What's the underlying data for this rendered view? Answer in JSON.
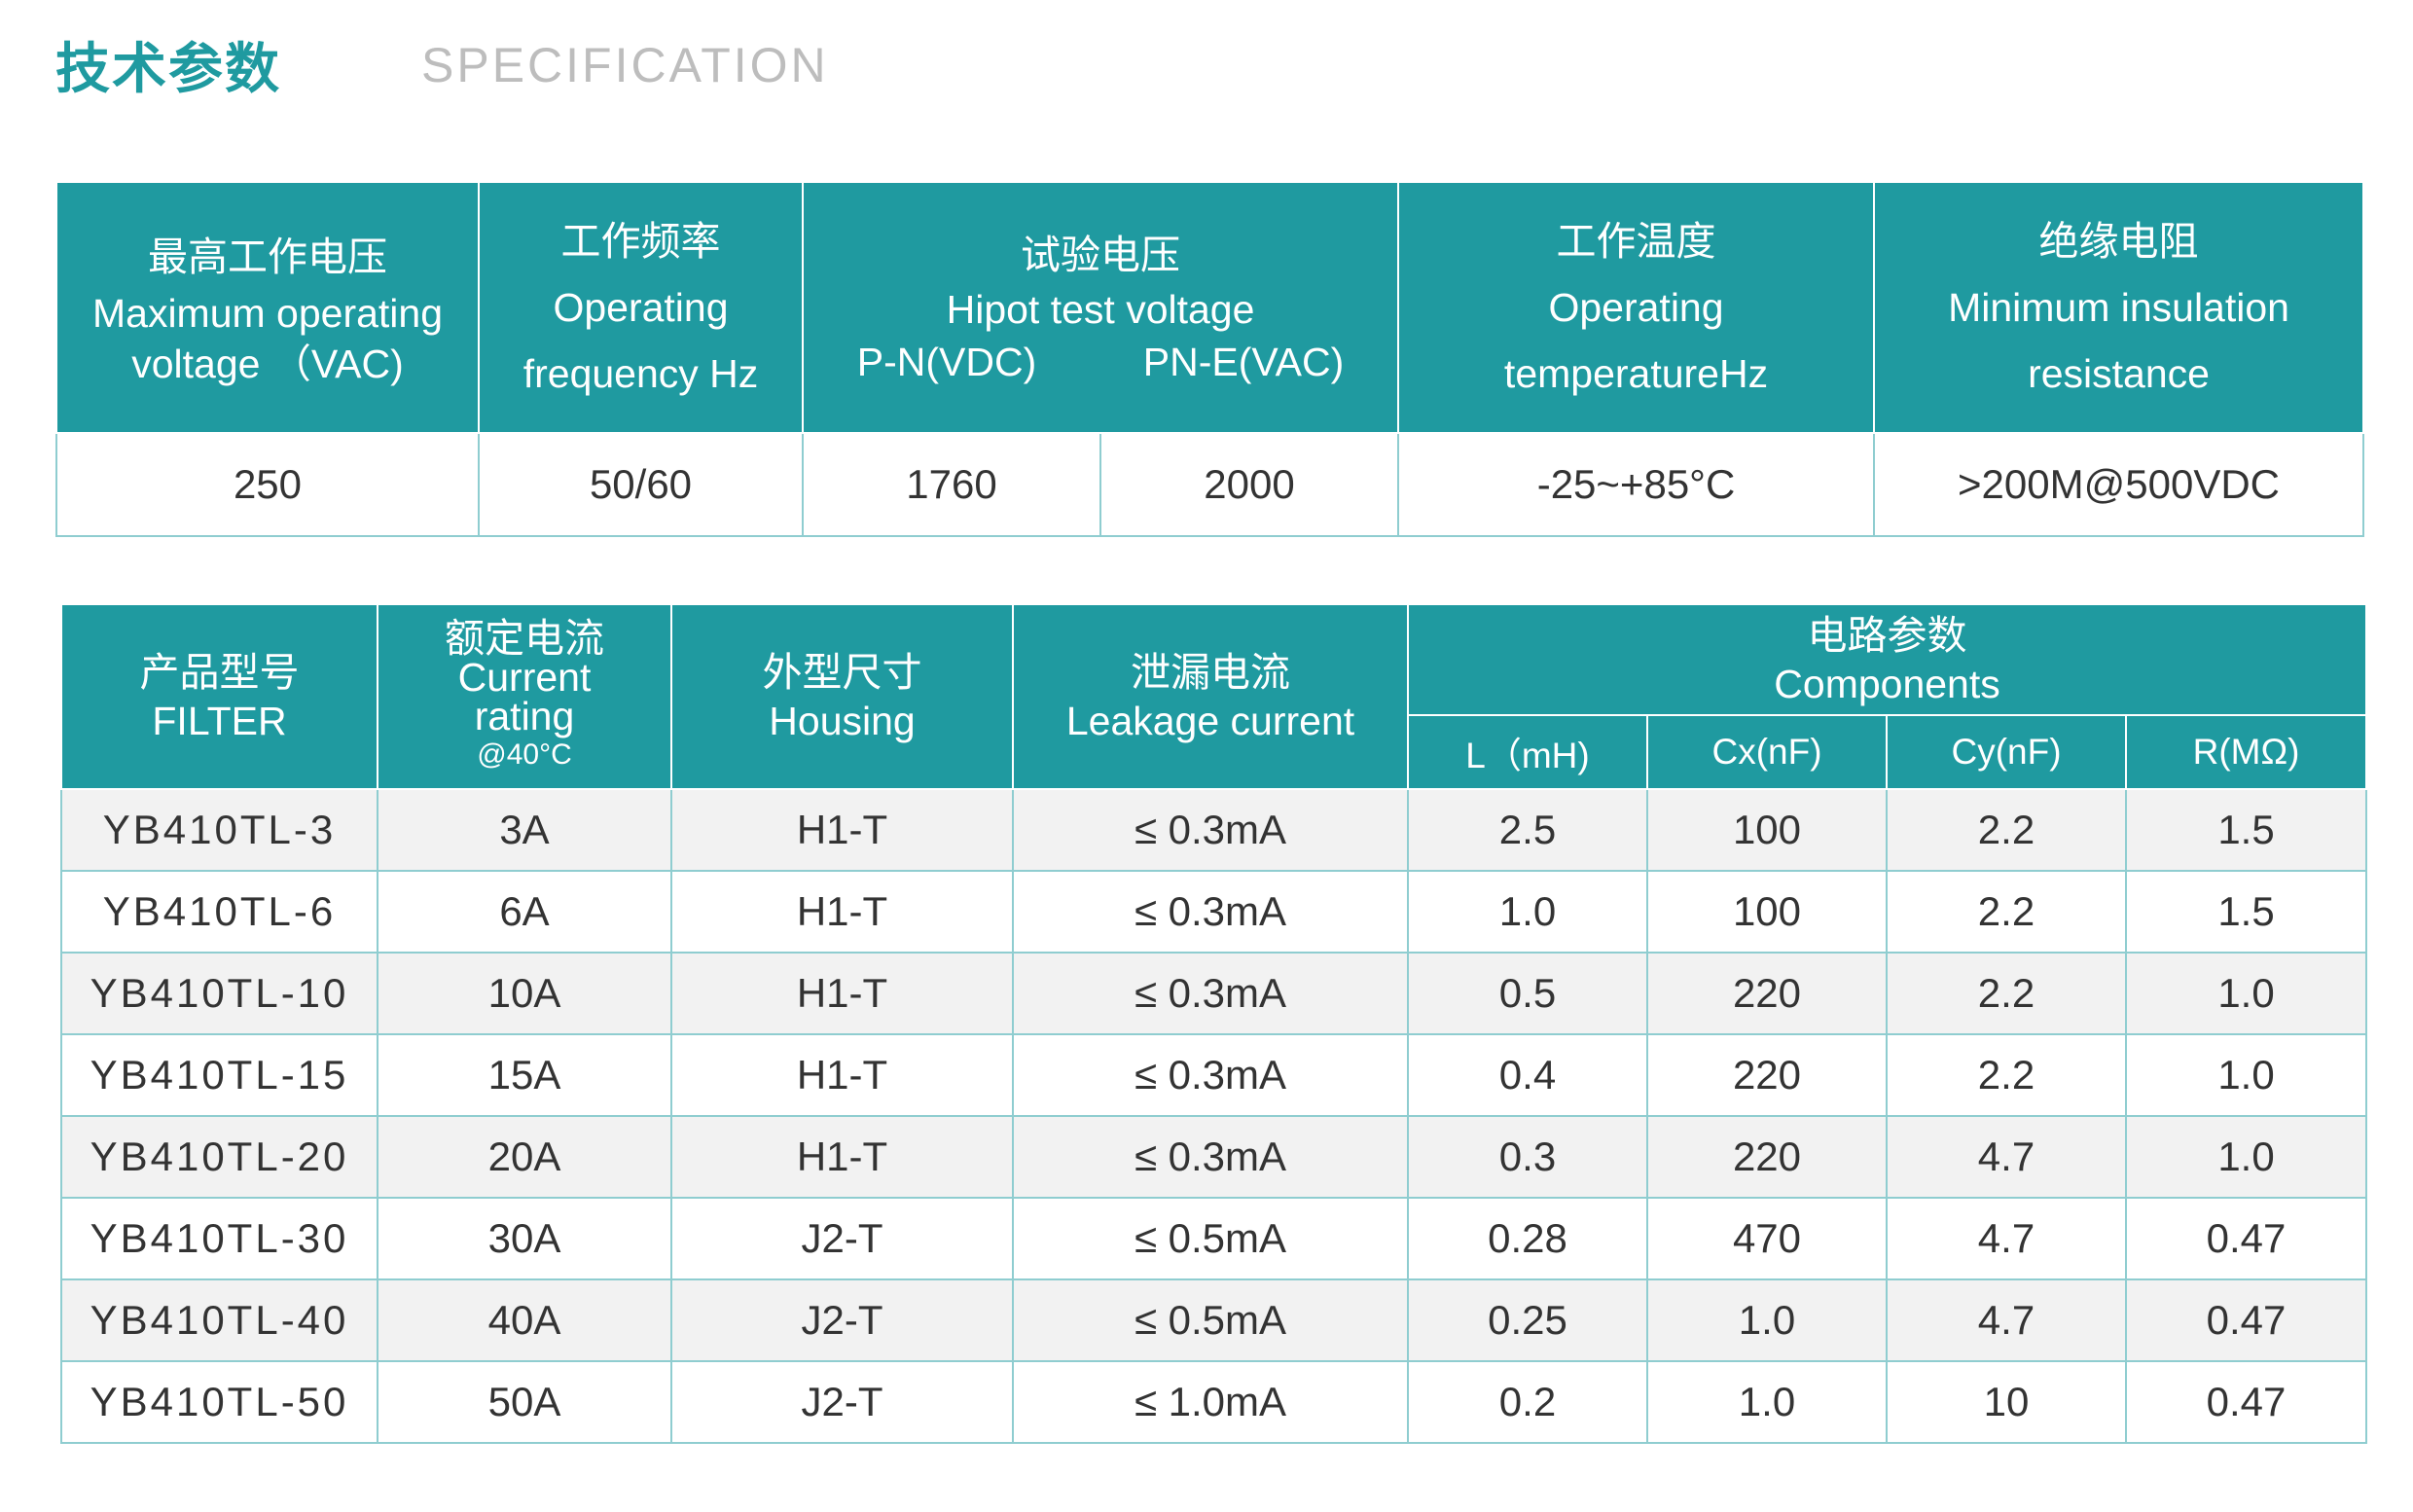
{
  "header": {
    "title_cn": "技术参数",
    "title_en": "SPECIFICATION"
  },
  "spec_table": {
    "headers": {
      "max_voltage": {
        "cn": "最高工作电压",
        "en1": "Maximum operating",
        "en2": "voltage （VAC)"
      },
      "frequency": {
        "cn": "工作频率",
        "en1": "Operating",
        "en2": "frequency Hz"
      },
      "hipot": {
        "cn": "试验电压",
        "en1": "Hipot test voltage",
        "pn": "P-N(VDC)",
        "pne": "PN-E(VAC)"
      },
      "temperature": {
        "cn": "工作温度",
        "en1": "Operating",
        "en2": "temperatureHz"
      },
      "insulation": {
        "cn": "绝缘电阻",
        "en1": "Minimum insulation",
        "en2": "resistance"
      }
    },
    "values": {
      "max_voltage": "250",
      "frequency": "50/60",
      "hipot_pn": "1760",
      "hipot_pne": "2000",
      "temperature": "-25~+85°C",
      "insulation": ">200M@500VDC"
    }
  },
  "product_table": {
    "headers": {
      "filter": {
        "cn": "产品型号",
        "en": "FILTER"
      },
      "current": {
        "cn": "额定电流",
        "en1": "Current",
        "en2": "rating",
        "note": "@40°C"
      },
      "housing": {
        "cn": "外型尺寸",
        "en": "Housing"
      },
      "leakage": {
        "cn": "泄漏电流",
        "en": "Leakage current"
      },
      "components": {
        "cn": "电路参数",
        "en": "Components"
      },
      "l": "L（mH)",
      "cx": "Cx(nF)",
      "cy": "Cy(nF)",
      "r": "R(MΩ)"
    },
    "rows": [
      {
        "model": "YB410TL-3",
        "current": "3A",
        "housing": "H1-T",
        "leakage": "≤ 0.3mA",
        "l": "2.5",
        "cx": "100",
        "cy": "2.2",
        "r": "1.5"
      },
      {
        "model": "YB410TL-6",
        "current": "6A",
        "housing": "H1-T",
        "leakage": "≤ 0.3mA",
        "l": "1.0",
        "cx": "100",
        "cy": "2.2",
        "r": "1.5"
      },
      {
        "model": "YB410TL-10",
        "current": "10A",
        "housing": "H1-T",
        "leakage": "≤ 0.3mA",
        "l": "0.5",
        "cx": "220",
        "cy": "2.2",
        "r": "1.0"
      },
      {
        "model": "YB410TL-15",
        "current": "15A",
        "housing": "H1-T",
        "leakage": "≤ 0.3mA",
        "l": "0.4",
        "cx": "220",
        "cy": "2.2",
        "r": "1.0"
      },
      {
        "model": "YB410TL-20",
        "current": "20A",
        "housing": "H1-T",
        "leakage": "≤ 0.3mA",
        "l": "0.3",
        "cx": "220",
        "cy": "4.7",
        "r": "1.0"
      },
      {
        "model": "YB410TL-30",
        "current": "30A",
        "housing": "J2-T",
        "leakage": "≤ 0.5mA",
        "l": "0.28",
        "cx": "470",
        "cy": "4.7",
        "r": "0.47"
      },
      {
        "model": "YB410TL-40",
        "current": "40A",
        "housing": "J2-T",
        "leakage": "≤ 0.5mA",
        "l": "0.25",
        "cx": "1.0",
        "cy": "4.7",
        "r": "0.47"
      },
      {
        "model": "YB410TL-50",
        "current": "50A",
        "housing": "J2-T",
        "leakage": "≤ 1.0mA",
        "l": "0.2",
        "cx": "1.0",
        "cy": "10",
        "r": "0.47"
      }
    ]
  },
  "colors": {
    "accent": "#1f9aa0",
    "header_text": "#ffffff",
    "subtitle": "#bdbdbd",
    "row_alt": "#f2f2f2",
    "border": "#8fcdd0"
  }
}
